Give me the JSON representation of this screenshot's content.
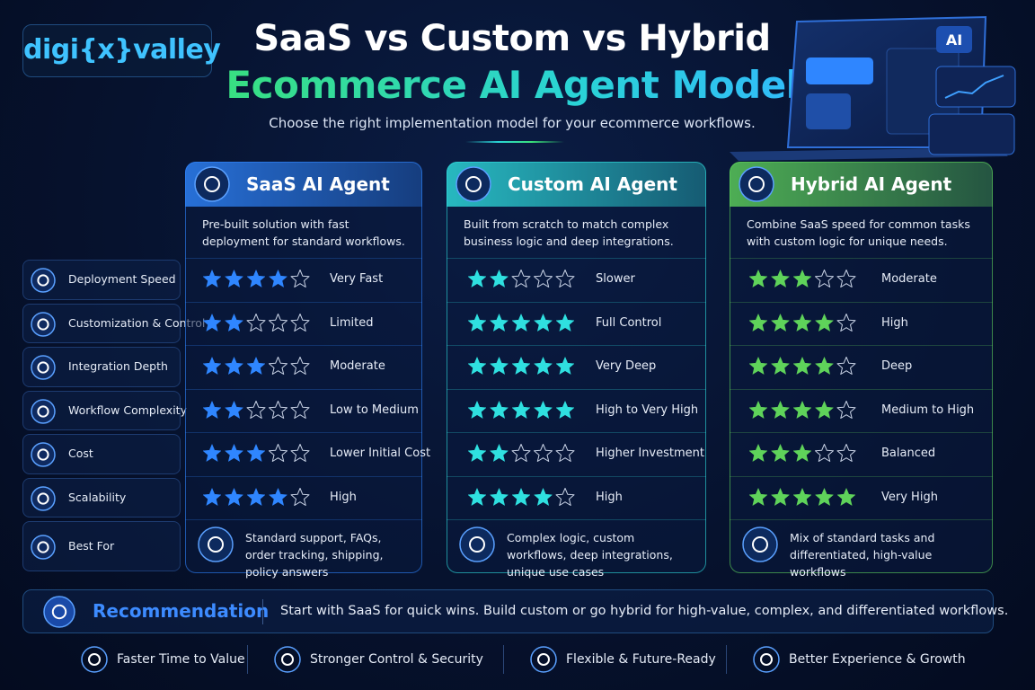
{
  "brand": "digi{x}valley",
  "header": {
    "title_line1": "SaaS vs Custom vs Hybrid",
    "title_line2": "Ecommerce AI Agent Model",
    "subtitle": "Choose the right implementation model for your ecommerce workflows."
  },
  "max_rating": 5,
  "criteria": [
    "Deployment Speed",
    "Customization & Control",
    "Integration Depth",
    "Workflow Complexity",
    "Cost",
    "Scalability",
    "Best For"
  ],
  "columns": [
    {
      "name": "SaaS AI Agent",
      "color": "#2f86ff",
      "description": "Pre-built solution with fast deployment for standard workflows.",
      "ratings": [
        4,
        2,
        3,
        2,
        3,
        4
      ],
      "rating_labels": [
        "Very Fast",
        "Limited",
        "Moderate",
        "Low to Medium",
        "Lower Initial Cost",
        "High"
      ],
      "best_for": "Standard support, FAQs, order tracking, shipping, policy answers"
    },
    {
      "name": "Custom AI Agent",
      "color": "#2fe0e0",
      "description": "Built from scratch to match complex business logic and deep integrations.",
      "ratings": [
        2,
        5,
        5,
        5,
        2,
        4
      ],
      "rating_labels": [
        "Slower",
        "Full Control",
        "Very Deep",
        "High to Very High",
        "Higher Investment",
        "High"
      ],
      "best_for": "Complex logic, custom workflows, deep integrations, unique use cases"
    },
    {
      "name": "Hybrid AI Agent",
      "color": "#5fd35a",
      "description": "Combine SaaS speed for common tasks with custom logic for unique needs.",
      "ratings": [
        3,
        4,
        4,
        4,
        3,
        5
      ],
      "rating_labels": [
        "Moderate",
        "High",
        "Deep",
        "Medium to High",
        "Balanced",
        "Very High"
      ],
      "best_for": "Mix of standard tasks and differentiated, high-value workflows"
    }
  ],
  "recommendation": {
    "label": "Recommendation",
    "text": "Start with SaaS for quick wins. Build custom or go hybrid for high-value, complex, and differentiated workflows."
  },
  "benefits": [
    "Faster Time to Value",
    "Stronger Control & Security",
    "Flexible & Future-Ready",
    "Better Experience & Growth"
  ]
}
